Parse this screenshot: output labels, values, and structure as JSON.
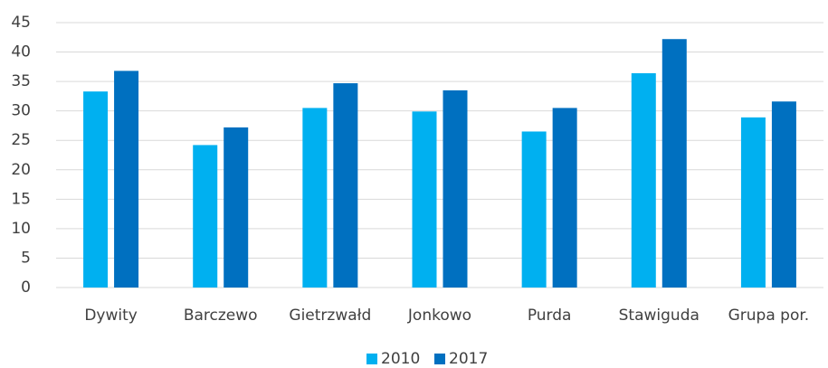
{
  "chart_data": {
    "type": "bar",
    "categories": [
      "Dywity",
      "Barczewo",
      "Gietrzwałd",
      "Jonkowo",
      "Purda",
      "Stawiguda",
      "Grupa por."
    ],
    "series": [
      {
        "name": "2010",
        "color": "#00b0f0",
        "values": [
          33.3,
          24.2,
          30.5,
          29.9,
          26.5,
          36.4,
          28.9
        ]
      },
      {
        "name": "2017",
        "color": "#0070c0",
        "values": [
          36.8,
          27.2,
          34.7,
          33.5,
          30.5,
          42.2,
          31.6
        ]
      }
    ],
    "ylim": [
      0,
      45
    ],
    "yticks": [
      0,
      5,
      10,
      15,
      20,
      25,
      30,
      35,
      40,
      45
    ],
    "grid": true,
    "legend": "bottom"
  }
}
